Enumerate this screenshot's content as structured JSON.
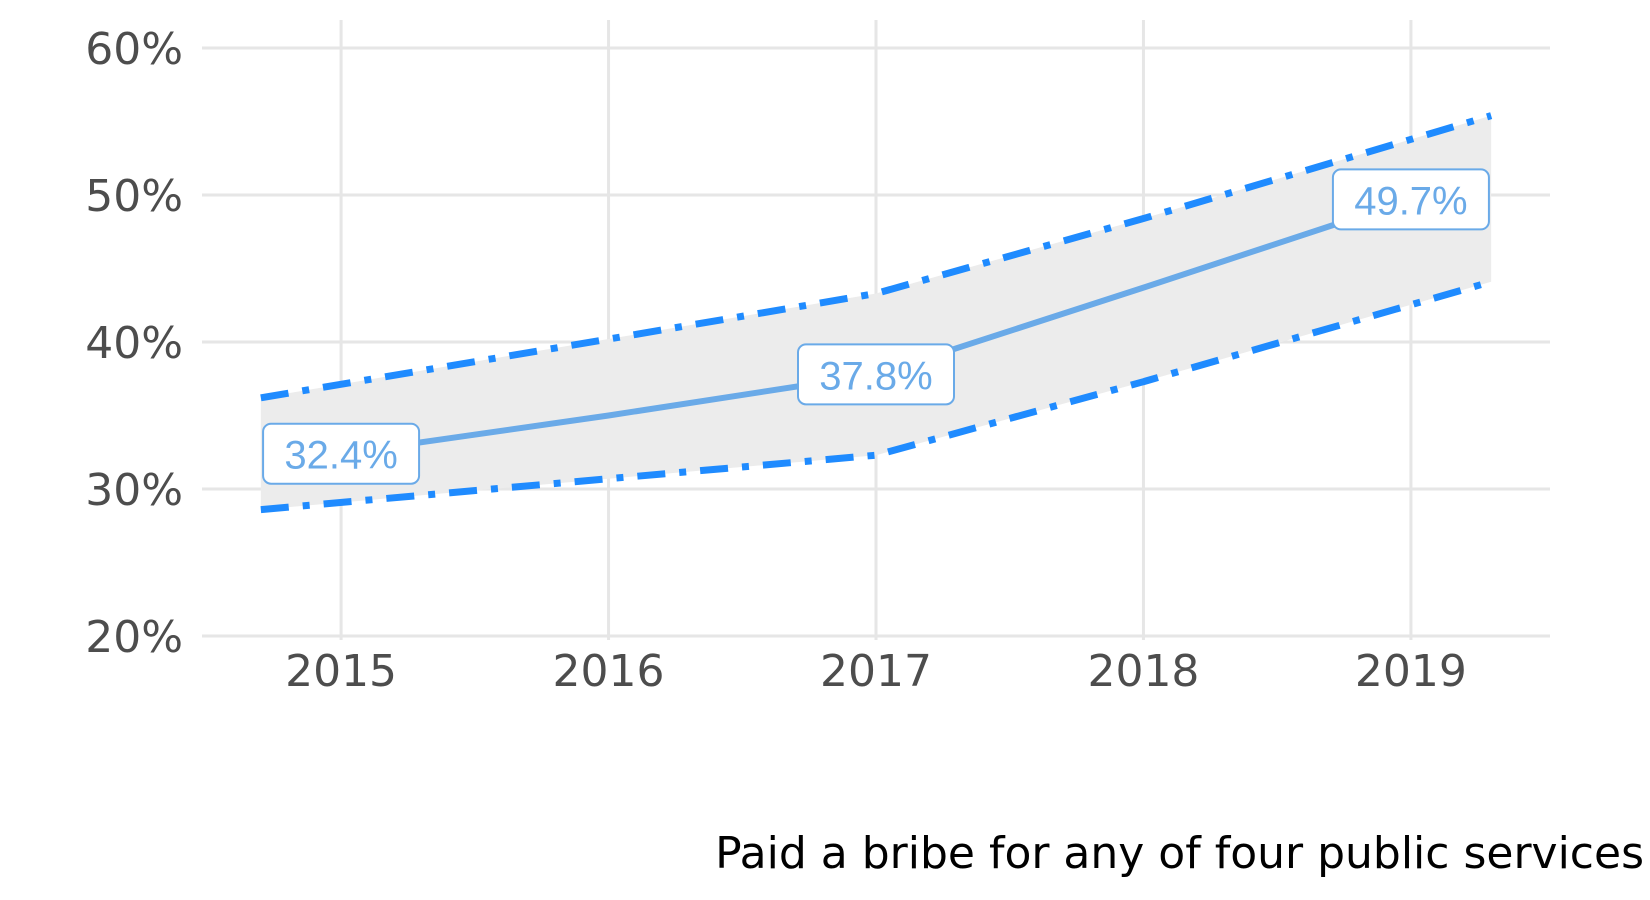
{
  "chart_data": {
    "type": "line",
    "x": [
      "2015",
      "2016",
      "2017",
      "2018",
      "2019"
    ],
    "series": [
      {
        "values": [
          32.4,
          35.0,
          37.8,
          43.7,
          49.7
        ]
      }
    ],
    "confidence_band": {
      "x_extent": [
        2014.7,
        2019.3
      ],
      "upper": {
        "x": [
          2014.7,
          2016,
          2017,
          2018,
          2019.3
        ],
        "y": [
          36.2,
          40.2,
          43.3,
          48.4,
          55.4
        ]
      },
      "lower": {
        "x": [
          2014.7,
          2016,
          2017,
          2018,
          2019.3
        ],
        "y": [
          28.6,
          30.7,
          32.3,
          37.3,
          44.1
        ]
      }
    },
    "data_labels": [
      {
        "x": "2015",
        "value": 32.4,
        "text": "32.4%"
      },
      {
        "x": "2017",
        "value": 37.8,
        "text": "37.8%"
      },
      {
        "x": "2019",
        "value": 49.7,
        "text": "49.7%"
      }
    ],
    "y_ticks": [
      {
        "value": 20,
        "label": "20%"
      },
      {
        "value": 30,
        "label": "30%"
      },
      {
        "value": 40,
        "label": "40%"
      },
      {
        "value": 50,
        "label": "50%"
      },
      {
        "value": 60,
        "label": "60%"
      }
    ],
    "x_ticks": [
      {
        "value": 2015,
        "label": "2015"
      },
      {
        "value": 2016,
        "label": "2016"
      },
      {
        "value": 2017,
        "label": "2017"
      },
      {
        "value": 2018,
        "label": "2018"
      },
      {
        "value": 2019,
        "label": "2019"
      }
    ],
    "ylim": [
      20,
      60
    ],
    "xlim": [
      2014.48,
      2019.52
    ],
    "caption": "Paid a bribe for any of four public services",
    "grid": true,
    "colors": {
      "line": "#6aaae8",
      "bounds": "#1f8bff",
      "band": "#ececec",
      "grid": "#e6e6e6",
      "label_text": "#6aaae8",
      "label_border": "#6aaae8",
      "tick_text": "#4d4d4d",
      "caption_text": "#000000"
    }
  }
}
